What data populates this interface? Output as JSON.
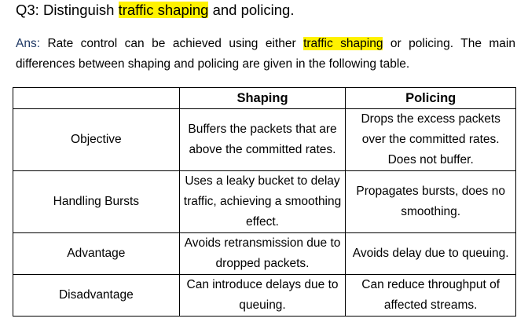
{
  "question": {
    "prefix": "Q3: Distinguish ",
    "highlight": "traffic shaping",
    "suffix": " and policing."
  },
  "answer": {
    "label": "Ans:",
    "text_before": " Rate control can be achieved using either ",
    "highlight": "traffic shaping",
    "text_after": " or policing. The main differences between shaping and policing are given in the following table."
  },
  "table": {
    "headers": [
      "",
      "Shaping",
      "Policing"
    ],
    "rows": [
      {
        "label": "Objective",
        "shaping": "Buffers the packets that are above the committed rates.",
        "policing": "Drops the excess packets over the committed rates. Does not buffer."
      },
      {
        "label": "Handling Bursts",
        "shaping": "Uses a leaky bucket to delay traffic, achieving a smoothing effect.",
        "policing": "Propagates bursts, does no smoothing."
      },
      {
        "label": "Advantage",
        "shaping": "Avoids retransmission due to dropped packets.",
        "policing": "Avoids delay due to queuing."
      },
      {
        "label": "Disadvantage",
        "shaping": "Can introduce delays due to queuing.",
        "policing": "Can reduce throughput of affected streams."
      }
    ]
  },
  "colors": {
    "highlight": "#fff200",
    "label": "#1f3864"
  }
}
